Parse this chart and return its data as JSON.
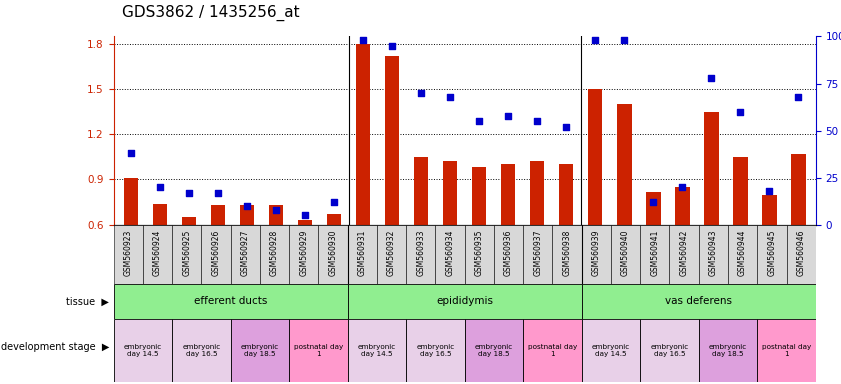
{
  "title": "GDS3862 / 1435256_at",
  "samples": [
    "GSM560923",
    "GSM560924",
    "GSM560925",
    "GSM560926",
    "GSM560927",
    "GSM560928",
    "GSM560929",
    "GSM560930",
    "GSM560931",
    "GSM560932",
    "GSM560933",
    "GSM560934",
    "GSM560935",
    "GSM560936",
    "GSM560937",
    "GSM560938",
    "GSM560939",
    "GSM560940",
    "GSM560941",
    "GSM560942",
    "GSM560943",
    "GSM560944",
    "GSM560945",
    "GSM560946"
  ],
  "red_values": [
    0.91,
    0.74,
    0.65,
    0.73,
    0.73,
    0.73,
    0.63,
    0.67,
    1.8,
    1.72,
    1.05,
    1.02,
    0.98,
    1.0,
    1.02,
    1.0,
    1.5,
    1.4,
    0.82,
    0.85,
    1.35,
    1.05,
    0.8,
    1.07
  ],
  "blue_values": [
    38,
    20,
    17,
    17,
    10,
    8,
    5,
    12,
    98,
    95,
    70,
    68,
    55,
    58,
    55,
    52,
    98,
    98,
    12,
    20,
    78,
    60,
    18,
    68
  ],
  "ylim_left": [
    0.6,
    1.85
  ],
  "ylim_right": [
    0,
    100
  ],
  "yticks_left": [
    0.6,
    0.9,
    1.2,
    1.5,
    1.8
  ],
  "yticks_right": [
    0,
    25,
    50,
    75,
    100
  ],
  "tissue_labels": [
    "efferent ducts",
    "epididymis",
    "vas deferens"
  ],
  "tissue_ranges": [
    [
      0,
      8
    ],
    [
      8,
      16
    ],
    [
      16,
      24
    ]
  ],
  "tissue_color": "#90EE90",
  "dev_stage_groups": [
    {
      "label": "embryonic\nday 14.5",
      "start": 0,
      "end": 2,
      "color": "#E8D0E8"
    },
    {
      "label": "embryonic\nday 16.5",
      "start": 2,
      "end": 4,
      "color": "#E8D0E8"
    },
    {
      "label": "embryonic\nday 18.5",
      "start": 4,
      "end": 6,
      "color": "#DDA0DD"
    },
    {
      "label": "postnatal day\n1",
      "start": 6,
      "end": 8,
      "color": "#FF99CC"
    },
    {
      "label": "embryonic\nday 14.5",
      "start": 8,
      "end": 10,
      "color": "#E8D0E8"
    },
    {
      "label": "embryonic\nday 16.5",
      "start": 10,
      "end": 12,
      "color": "#E8D0E8"
    },
    {
      "label": "embryonic\nday 18.5",
      "start": 12,
      "end": 14,
      "color": "#DDA0DD"
    },
    {
      "label": "postnatal day\n1",
      "start": 14,
      "end": 16,
      "color": "#FF99CC"
    },
    {
      "label": "embryonic\nday 14.5",
      "start": 16,
      "end": 18,
      "color": "#E8D0E8"
    },
    {
      "label": "embryonic\nday 16.5",
      "start": 18,
      "end": 20,
      "color": "#E8D0E8"
    },
    {
      "label": "embryonic\nday 18.5",
      "start": 20,
      "end": 22,
      "color": "#DDA0DD"
    },
    {
      "label": "postnatal day\n1",
      "start": 22,
      "end": 24,
      "color": "#FF99CC"
    }
  ],
  "bar_color": "#CC2200",
  "dot_color": "#0000CC",
  "bar_width": 0.5,
  "title_fontsize": 11,
  "bar_bottom": 0.6,
  "xticklabel_bg": "#D8D8D8"
}
